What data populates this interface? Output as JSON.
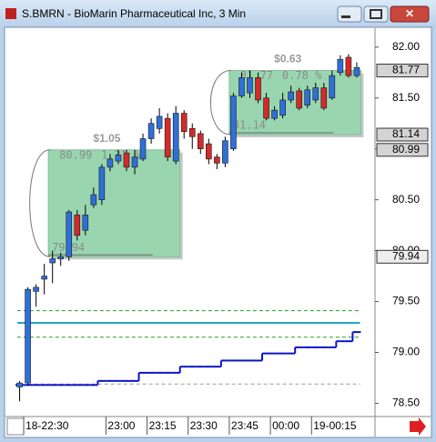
{
  "chart_data": {
    "type": "candlestick",
    "title": "S.BMRN - BioMarin Pharmaceutical Inc, 3 Min",
    "x": [
      0,
      1,
      2,
      3,
      4,
      5,
      6,
      7,
      8,
      9,
      10,
      11,
      12,
      13,
      14,
      15,
      16,
      17,
      18,
      19,
      20,
      21,
      22,
      23,
      24,
      25,
      26,
      27,
      28,
      29,
      30,
      31,
      32,
      33,
      34,
      35,
      36,
      37,
      38,
      39,
      40,
      41
    ],
    "open": [
      78.66,
      78.7,
      79.6,
      79.72,
      79.88,
      79.92,
      79.94,
      80.35,
      80.2,
      80.45,
      80.5,
      80.82,
      80.88,
      80.96,
      80.82,
      80.9,
      81.1,
      81.2,
      81.3,
      80.88,
      81.35,
      81.2,
      81.15,
      81.05,
      80.92,
      80.86,
      81.0,
      81.52,
      81.55,
      81.7,
      81.5,
      81.3,
      81.33,
      81.48,
      81.57,
      81.43,
      81.48,
      81.6,
      81.5,
      81.75,
      81.9,
      81.72
    ],
    "high": [
      78.72,
      79.64,
      79.67,
      79.87,
      80.0,
      79.98,
      80.4,
      80.4,
      80.45,
      80.62,
      80.85,
      80.95,
      80.99,
      80.99,
      80.99,
      81.15,
      81.3,
      81.4,
      81.35,
      81.42,
      81.38,
      81.25,
      81.18,
      81.1,
      80.95,
      81.12,
      81.55,
      81.75,
      81.77,
      81.75,
      81.55,
      81.42,
      81.55,
      81.62,
      81.6,
      81.62,
      81.65,
      81.65,
      81.77,
      81.92,
      81.93,
      81.85
    ],
    "low": [
      78.52,
      78.68,
      79.45,
      79.57,
      79.68,
      79.85,
      79.9,
      80.1,
      80.15,
      80.42,
      80.45,
      80.78,
      80.85,
      80.78,
      80.75,
      80.88,
      81.05,
      81.15,
      80.88,
      80.85,
      81.1,
      81.0,
      80.95,
      80.85,
      80.8,
      80.82,
      80.98,
      81.5,
      81.5,
      81.45,
      81.28,
      81.28,
      81.3,
      81.45,
      81.38,
      81.4,
      81.45,
      81.38,
      81.48,
      81.72,
      81.7,
      81.7
    ],
    "close": [
      78.7,
      79.62,
      79.64,
      79.75,
      79.92,
      79.94,
      80.38,
      80.15,
      80.35,
      80.55,
      80.82,
      80.9,
      80.94,
      80.82,
      80.92,
      81.1,
      81.25,
      81.32,
      80.92,
      81.35,
      81.17,
      81.12,
      81.0,
      80.9,
      80.86,
      81.08,
      81.52,
      81.7,
      81.7,
      81.48,
      81.3,
      81.38,
      81.48,
      81.56,
      81.4,
      81.58,
      81.6,
      81.4,
      81.72,
      81.88,
      81.72,
      81.8
    ],
    "up_color": "#2f6fd8",
    "down_color": "#d42a2a",
    "xlim": [
      -1.5,
      43
    ],
    "xticks": [
      {
        "value": 1,
        "label": "18-22:30"
      },
      {
        "value": 11,
        "label": "23:00"
      },
      {
        "value": 16,
        "label": "23:15"
      },
      {
        "value": 21,
        "label": "23:30"
      },
      {
        "value": 26,
        "label": "23:45"
      },
      {
        "value": 31,
        "label": "00:00"
      },
      {
        "value": 36,
        "label": "19-00:15"
      }
    ],
    "ylim": [
      78.37,
      82.15
    ],
    "yticks": [
      {
        "value": 78.5,
        "label": "78.50"
      },
      {
        "value": 79,
        "label": "79.00"
      },
      {
        "value": 79.5,
        "label": "79.50"
      },
      {
        "value": 80,
        "label": "80.00"
      },
      {
        "value": 80.5,
        "label": "80.50"
      },
      {
        "value": 81,
        "label": "81.00"
      },
      {
        "value": 81.5,
        "label": "81.50"
      },
      {
        "value": 82,
        "label": "82.00"
      }
    ],
    "series": [
      {
        "color": "#0a14c8",
        "values": [
          78.68,
          78.68,
          78.68,
          78.68,
          78.68,
          78.68,
          78.68,
          78.68,
          78.68,
          78.68,
          78.72,
          78.72,
          78.72,
          78.72,
          78.72,
          78.8,
          78.8,
          78.8,
          78.8,
          78.8,
          78.86,
          78.86,
          78.86,
          78.86,
          78.86,
          78.92,
          78.92,
          78.92,
          78.92,
          78.92,
          78.99,
          78.99,
          78.99,
          78.99,
          79.05,
          79.05,
          79.05,
          79.05,
          79.05,
          79.11,
          79.11,
          79.2
        ]
      }
    ],
    "reference_lines": [
      {
        "value": 79.41,
        "color": "#22a022",
        "style": "dashed"
      },
      {
        "value": 79.29,
        "color": "#20a8c8",
        "style": "solid"
      },
      {
        "value": 79.15,
        "color": "#22a022",
        "style": "dashed"
      },
      {
        "value": 78.69,
        "color": "#9a9a9a",
        "style": "dashed"
      }
    ],
    "boxes": [
      {
        "start": 4,
        "end": 19,
        "low": 79.94,
        "high": 80.99,
        "change": {
          "value": 1.05,
          "label": "$1.05"
        },
        "pct": {
          "value": 1.31,
          "label": "1.31 %"
        }
      },
      {
        "start": 26,
        "end": 41,
        "low": 81.14,
        "high": 81.77,
        "change": {
          "value": 0.63,
          "label": "$0.63"
        },
        "pct": {
          "value": 0.78,
          "label": "0.78 %"
        }
      }
    ]
  }
}
